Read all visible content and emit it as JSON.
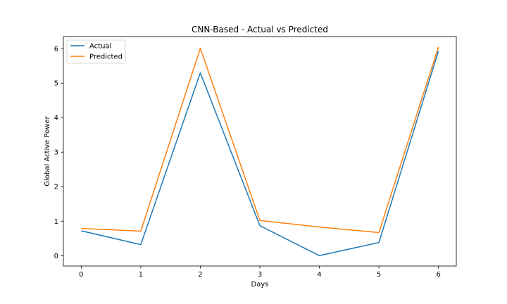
{
  "chart_data": {
    "type": "line",
    "title": "CNN-Based - Actual vs Predicted",
    "xlabel": "Days",
    "ylabel": "Global Active Power",
    "x": [
      0,
      1,
      2,
      3,
      4,
      5,
      6
    ],
    "xlim": [
      -0.3,
      6.3
    ],
    "ylim": [
      -0.3,
      6.35
    ],
    "xticks": [
      0,
      1,
      2,
      3,
      4,
      5,
      6
    ],
    "yticks": [
      0,
      1,
      2,
      3,
      4,
      5,
      6
    ],
    "grid": false,
    "legend_position": "upper left",
    "series": [
      {
        "name": "Actual",
        "color": "#1f77b4",
        "values": [
          0.72,
          0.32,
          5.3,
          0.87,
          0.0,
          0.38,
          5.93
        ]
      },
      {
        "name": "Predicted",
        "color": "#ff7f0e",
        "values": [
          0.79,
          0.71,
          6.01,
          1.02,
          0.83,
          0.67,
          6.05
        ]
      }
    ]
  }
}
